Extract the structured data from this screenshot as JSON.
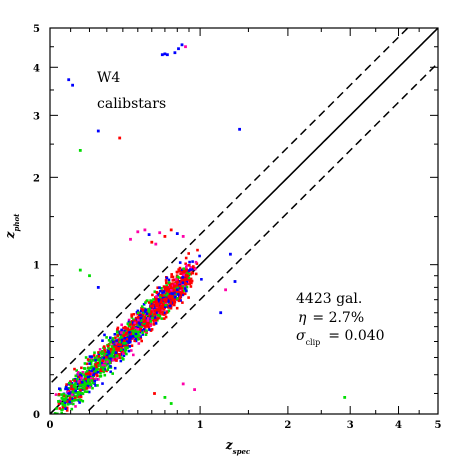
{
  "chart_data": {
    "type": "scatter",
    "axes": {
      "x": {
        "label_main": "z",
        "label_sub": "spec",
        "ticks": [
          0,
          1,
          2,
          3,
          4,
          5
        ],
        "tick_labels": [
          "0",
          "1",
          "2",
          "3",
          "4",
          "5"
        ],
        "lim": [
          0,
          5
        ],
        "scale": "log(1+z)"
      },
      "y": {
        "label_main": "z",
        "label_sub": "phot",
        "ticks": [
          0,
          1,
          2,
          3,
          4,
          5
        ],
        "tick_labels": [
          "0",
          "1",
          "2",
          "3",
          "4",
          "5"
        ],
        "lim": [
          0,
          5
        ],
        "scale": "log(1+z)"
      }
    },
    "annotations": {
      "field": "W4",
      "sample": "calibstars",
      "ngal": "4423 gal.",
      "eta_symbol": "η",
      "eta_value": "=  2.7%",
      "sigma_symbol": "σ",
      "sigma_sub": "clip",
      "sigma_value": "=  0.040"
    },
    "lines": [
      {
        "name": "one-to-one",
        "style": "solid",
        "eq": "z_phot = z_spec"
      },
      {
        "name": "upper-bound",
        "style": "dashed",
        "eq": "z_phot = z_spec + 0.15(1+z_spec)"
      },
      {
        "name": "lower-bound",
        "style": "dashed",
        "eq": "z_phot = z_spec - 0.15(1+z_spec)"
      }
    ],
    "colors": {
      "red": "#ff0000",
      "green": "#00dd00",
      "blue": "#0000ff",
      "magenta": "#ff00aa"
    },
    "series_color_weights": {
      "red": 0.4,
      "green": 0.25,
      "blue": 0.25,
      "magenta": 0.1
    },
    "outliers": [
      {
        "zspec": 0.68,
        "zphot": 4.3,
        "c": "blue"
      },
      {
        "zspec": 0.72,
        "zphot": 4.3,
        "c": "blue"
      },
      {
        "zspec": 0.78,
        "zphot": 4.35,
        "c": "blue"
      },
      {
        "zspec": 0.81,
        "zphot": 4.45,
        "c": "blue"
      },
      {
        "zspec": 0.87,
        "zphot": 4.5,
        "c": "magenta"
      },
      {
        "zspec": 0.84,
        "zphot": 4.55,
        "c": "blue"
      },
      {
        "zspec": 0.7,
        "zphot": 4.32,
        "c": "blue"
      },
      {
        "zspec": 0.09,
        "zphot": 3.72,
        "c": "blue"
      },
      {
        "zspec": 0.11,
        "zphot": 3.6,
        "c": "blue"
      },
      {
        "zspec": 0.25,
        "zphot": 2.72,
        "c": "blue"
      },
      {
        "zspec": 0.38,
        "zphot": 2.6,
        "c": "red"
      },
      {
        "zspec": 0.15,
        "zphot": 2.4,
        "c": "green"
      },
      {
        "zspec": 1.4,
        "zphot": 2.75,
        "c": "blue"
      },
      {
        "zspec": 0.45,
        "zphot": 1.25,
        "c": "magenta"
      },
      {
        "zspec": 0.55,
        "zphot": 1.35,
        "c": "magenta"
      },
      {
        "zspec": 0.6,
        "zphot": 1.22,
        "c": "red"
      },
      {
        "zspec": 0.66,
        "zphot": 1.32,
        "c": "magenta"
      },
      {
        "zspec": 0.7,
        "zphot": 1.28,
        "c": "red"
      },
      {
        "zspec": 0.5,
        "zphot": 1.33,
        "c": "magenta"
      },
      {
        "zspec": 0.75,
        "zphot": 1.35,
        "c": "red"
      },
      {
        "zspec": 0.8,
        "zphot": 1.31,
        "c": "blue"
      },
      {
        "zspec": 0.58,
        "zphot": 1.3,
        "c": "blue"
      },
      {
        "zspec": 0.63,
        "zphot": 1.2,
        "c": "magenta"
      },
      {
        "zspec": 0.85,
        "zphot": 1.28,
        "c": "magenta"
      },
      {
        "zspec": 1.3,
        "zphot": 1.1,
        "c": "blue"
      },
      {
        "zspec": 1.35,
        "zphot": 0.85,
        "c": "blue"
      },
      {
        "zspec": 1.2,
        "zphot": 0.6,
        "c": "blue"
      },
      {
        "zspec": 1.25,
        "zphot": 0.78,
        "c": "magenta"
      },
      {
        "zspec": 0.15,
        "zphot": 0.95,
        "c": "green"
      },
      {
        "zspec": 0.2,
        "zphot": 0.9,
        "c": "green"
      },
      {
        "zspec": 0.25,
        "zphot": 0.8,
        "c": "blue"
      },
      {
        "zspec": 0.95,
        "zphot": 0.12,
        "c": "magenta"
      },
      {
        "zspec": 0.85,
        "zphot": 0.15,
        "c": "magenta"
      },
      {
        "zspec": 0.7,
        "zphot": 0.08,
        "c": "green"
      },
      {
        "zspec": 0.62,
        "zphot": 0.1,
        "c": "red"
      },
      {
        "zspec": 0.75,
        "zphot": 0.05,
        "c": "green"
      },
      {
        "zspec": 2.9,
        "zphot": 0.08,
        "c": "green"
      },
      {
        "zspec": 0.04,
        "zphot": 0.06,
        "c": "green"
      }
    ]
  }
}
